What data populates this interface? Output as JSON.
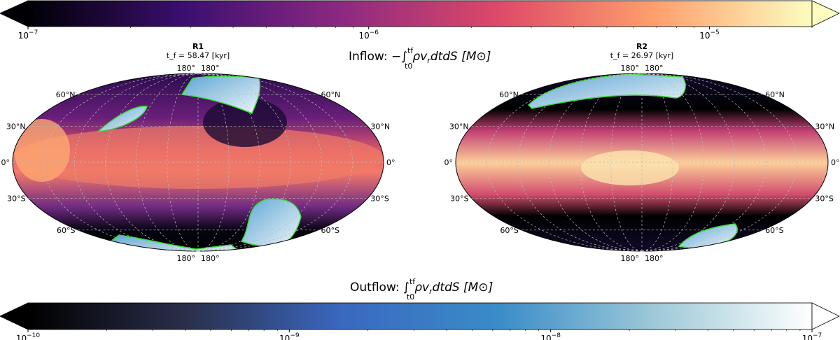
{
  "chart_data": [
    {
      "type": "heatmap",
      "projection": "mollweide",
      "title": "R1",
      "subtitle": "t_f = 58.47 [kyr]",
      "lat_labels_north": [
        "60°N",
        "30°N"
      ],
      "lat_label_equator": "0°",
      "lat_labels_south": [
        "30°S",
        "60°S"
      ],
      "lon_labels": [
        "180°",
        "180°"
      ],
      "grid": true
    },
    {
      "type": "heatmap",
      "projection": "mollweide",
      "title": "R2",
      "subtitle": "t_f = 26.97 [kyr]",
      "lat_labels_north": [
        "60°N",
        "30°N"
      ],
      "lat_label_equator": "0°",
      "lat_labels_south": [
        "30°S",
        "60°S"
      ],
      "lon_labels": [
        "180°",
        "180°"
      ],
      "grid": true
    }
  ],
  "colorbars": {
    "inflow": {
      "label": "Inflow: −∫ ρ v_r dt dS [M⊙]",
      "label_prefix": "Inflow: −∫",
      "label_lower": "t0",
      "label_upper": "tf",
      "label_body": "ρv",
      "label_sub": "r",
      "label_tail": "dtdS [M⊙]",
      "scale": "log",
      "range": [
        1e-07,
        2e-05
      ],
      "colormap": "magma",
      "ticks": [
        {
          "base": "10",
          "exp": "−7",
          "value": 1e-07
        },
        {
          "base": "10",
          "exp": "−6",
          "value": 1e-06
        },
        {
          "base": "10",
          "exp": "−5",
          "value": 1e-05
        }
      ]
    },
    "outflow": {
      "label_prefix": "Outflow: ∫",
      "label_lower": "t0",
      "label_upper": "tf",
      "label_body": "ρv",
      "label_sub": "r",
      "label_tail": "dtdS [M⊙]",
      "scale": "log",
      "range": [
        1e-10,
        1e-07
      ],
      "colormap": "black-blue-white",
      "ticks": [
        {
          "base": "10",
          "exp": "−10",
          "value": 1e-10
        },
        {
          "base": "10",
          "exp": "−9",
          "value": 1e-09
        },
        {
          "base": "10",
          "exp": "−8",
          "value": 1e-08
        },
        {
          "base": "10",
          "exp": "−7",
          "value": 1e-07
        }
      ]
    }
  },
  "colors": {
    "contour": "#33dd33",
    "magma": [
      "#000004",
      "#3b0f70",
      "#8c2981",
      "#de4968",
      "#fe9f6d",
      "#fcfdbf"
    ],
    "outflow": [
      "#000000",
      "#2a2e4a",
      "#3a68c0",
      "#3a8cc8",
      "#9ec9d8",
      "#ffffff"
    ]
  }
}
